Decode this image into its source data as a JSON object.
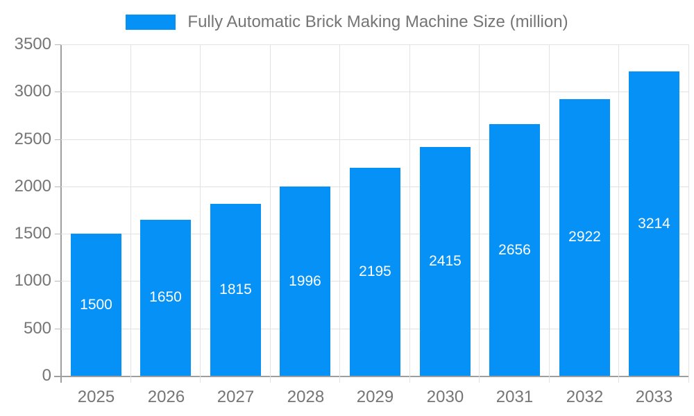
{
  "chart_data": {
    "type": "bar",
    "title": "Fully Automatic Brick Making Machine Size (million)",
    "categories": [
      "2025",
      "2026",
      "2027",
      "2028",
      "2029",
      "2030",
      "2031",
      "2032",
      "2033"
    ],
    "values": [
      1500,
      1650,
      1815,
      1996,
      2195,
      2415,
      2656,
      2922,
      3214
    ],
    "xlabel": "",
    "ylabel": "",
    "ylim": [
      0,
      3500
    ],
    "ytick_step": 500,
    "ytick_labels": [
      "0",
      "500",
      "1000",
      "1500",
      "2000",
      "2500",
      "3000",
      "3500"
    ],
    "grid": true,
    "legend_position": "top",
    "value_labels": "inside-center"
  },
  "colors": {
    "bar": "#0591f5",
    "axis_line": "#9e9e9e",
    "grid_line": "#e2e2e2",
    "tick_mark": "#b5b5b5",
    "axis_text": "#757575",
    "value_label_text": "#ffffff",
    "background": "#ffffff"
  }
}
